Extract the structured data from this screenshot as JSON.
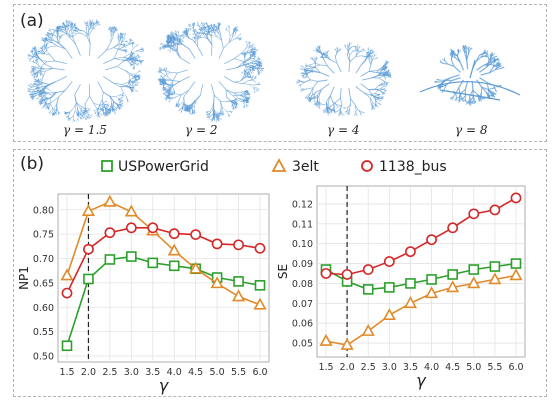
{
  "panel_a": {
    "label": "(a)",
    "thumbnails": [
      {
        "caption": "γ = 1.5"
      },
      {
        "caption": "γ = 2"
      },
      {
        "caption": "γ = 4"
      },
      {
        "caption": "γ = 8"
      }
    ]
  },
  "panel_b": {
    "label": "(b)",
    "legend": [
      "USPowerGrid",
      "3elt",
      "1138_bus"
    ]
  },
  "colors": {
    "USPowerGrid": "#2ca02c",
    "3elt": "#e08a2a",
    "1138_bus": "#d62728",
    "graph": "#5b9bd5"
  },
  "chart_data": [
    {
      "type": "line",
      "ylabel": "NP1",
      "xlabel": "γ",
      "x": [
        1.5,
        2.0,
        2.5,
        3.0,
        3.5,
        4.0,
        4.5,
        5.0,
        5.5,
        6.0
      ],
      "xticks": [
        "1.5",
        "2.0",
        "2.5",
        "3.0",
        "3.5",
        "4.0",
        "4.5",
        "5.0",
        "5.5",
        "6.0"
      ],
      "ylim": [
        0.5,
        0.82
      ],
      "yticks": [
        "0.50",
        "0.55",
        "0.60",
        "0.65",
        "0.70",
        "0.75",
        "0.80"
      ],
      "vline_x": 2.0,
      "grid": true,
      "series": [
        {
          "name": "USPowerGrid",
          "marker": "square",
          "values": [
            0.521,
            0.658,
            0.698,
            0.704,
            0.691,
            0.685,
            0.679,
            0.661,
            0.653,
            0.645
          ]
        },
        {
          "name": "3elt",
          "marker": "triangle",
          "values": [
            0.665,
            0.797,
            0.816,
            0.796,
            0.757,
            0.716,
            0.679,
            0.649,
            0.622,
            0.605
          ]
        },
        {
          "name": "1138_bus",
          "marker": "circle",
          "values": [
            0.629,
            0.719,
            0.753,
            0.763,
            0.763,
            0.751,
            0.749,
            0.73,
            0.728,
            0.721
          ]
        }
      ]
    },
    {
      "type": "line",
      "ylabel": "SE",
      "xlabel": "γ",
      "x": [
        1.5,
        2.0,
        2.5,
        3.0,
        3.5,
        4.0,
        4.5,
        5.0,
        5.5,
        6.0
      ],
      "xticks": [
        "1.5",
        "2.0",
        "2.5",
        "3.0",
        "3.5",
        "4.0",
        "4.5",
        "5.0",
        "5.5",
        "6.0"
      ],
      "ylim": [
        0.046,
        0.126
      ],
      "yticks": [
        "0.05",
        "0.06",
        "0.07",
        "0.08",
        "0.09",
        "0.10",
        "0.11",
        "0.12"
      ],
      "vline_x": 2.0,
      "grid": true,
      "series": [
        {
          "name": "USPowerGrid",
          "marker": "square",
          "values": [
            0.087,
            0.081,
            0.077,
            0.078,
            0.08,
            0.082,
            0.0845,
            0.087,
            0.0885,
            0.09
          ]
        },
        {
          "name": "3elt",
          "marker": "triangle",
          "values": [
            0.051,
            0.049,
            0.056,
            0.064,
            0.07,
            0.075,
            0.078,
            0.08,
            0.082,
            0.084
          ]
        },
        {
          "name": "1138_bus",
          "marker": "circle",
          "values": [
            0.085,
            0.0845,
            0.087,
            0.091,
            0.096,
            0.102,
            0.108,
            0.115,
            0.117,
            0.123
          ]
        }
      ]
    }
  ]
}
